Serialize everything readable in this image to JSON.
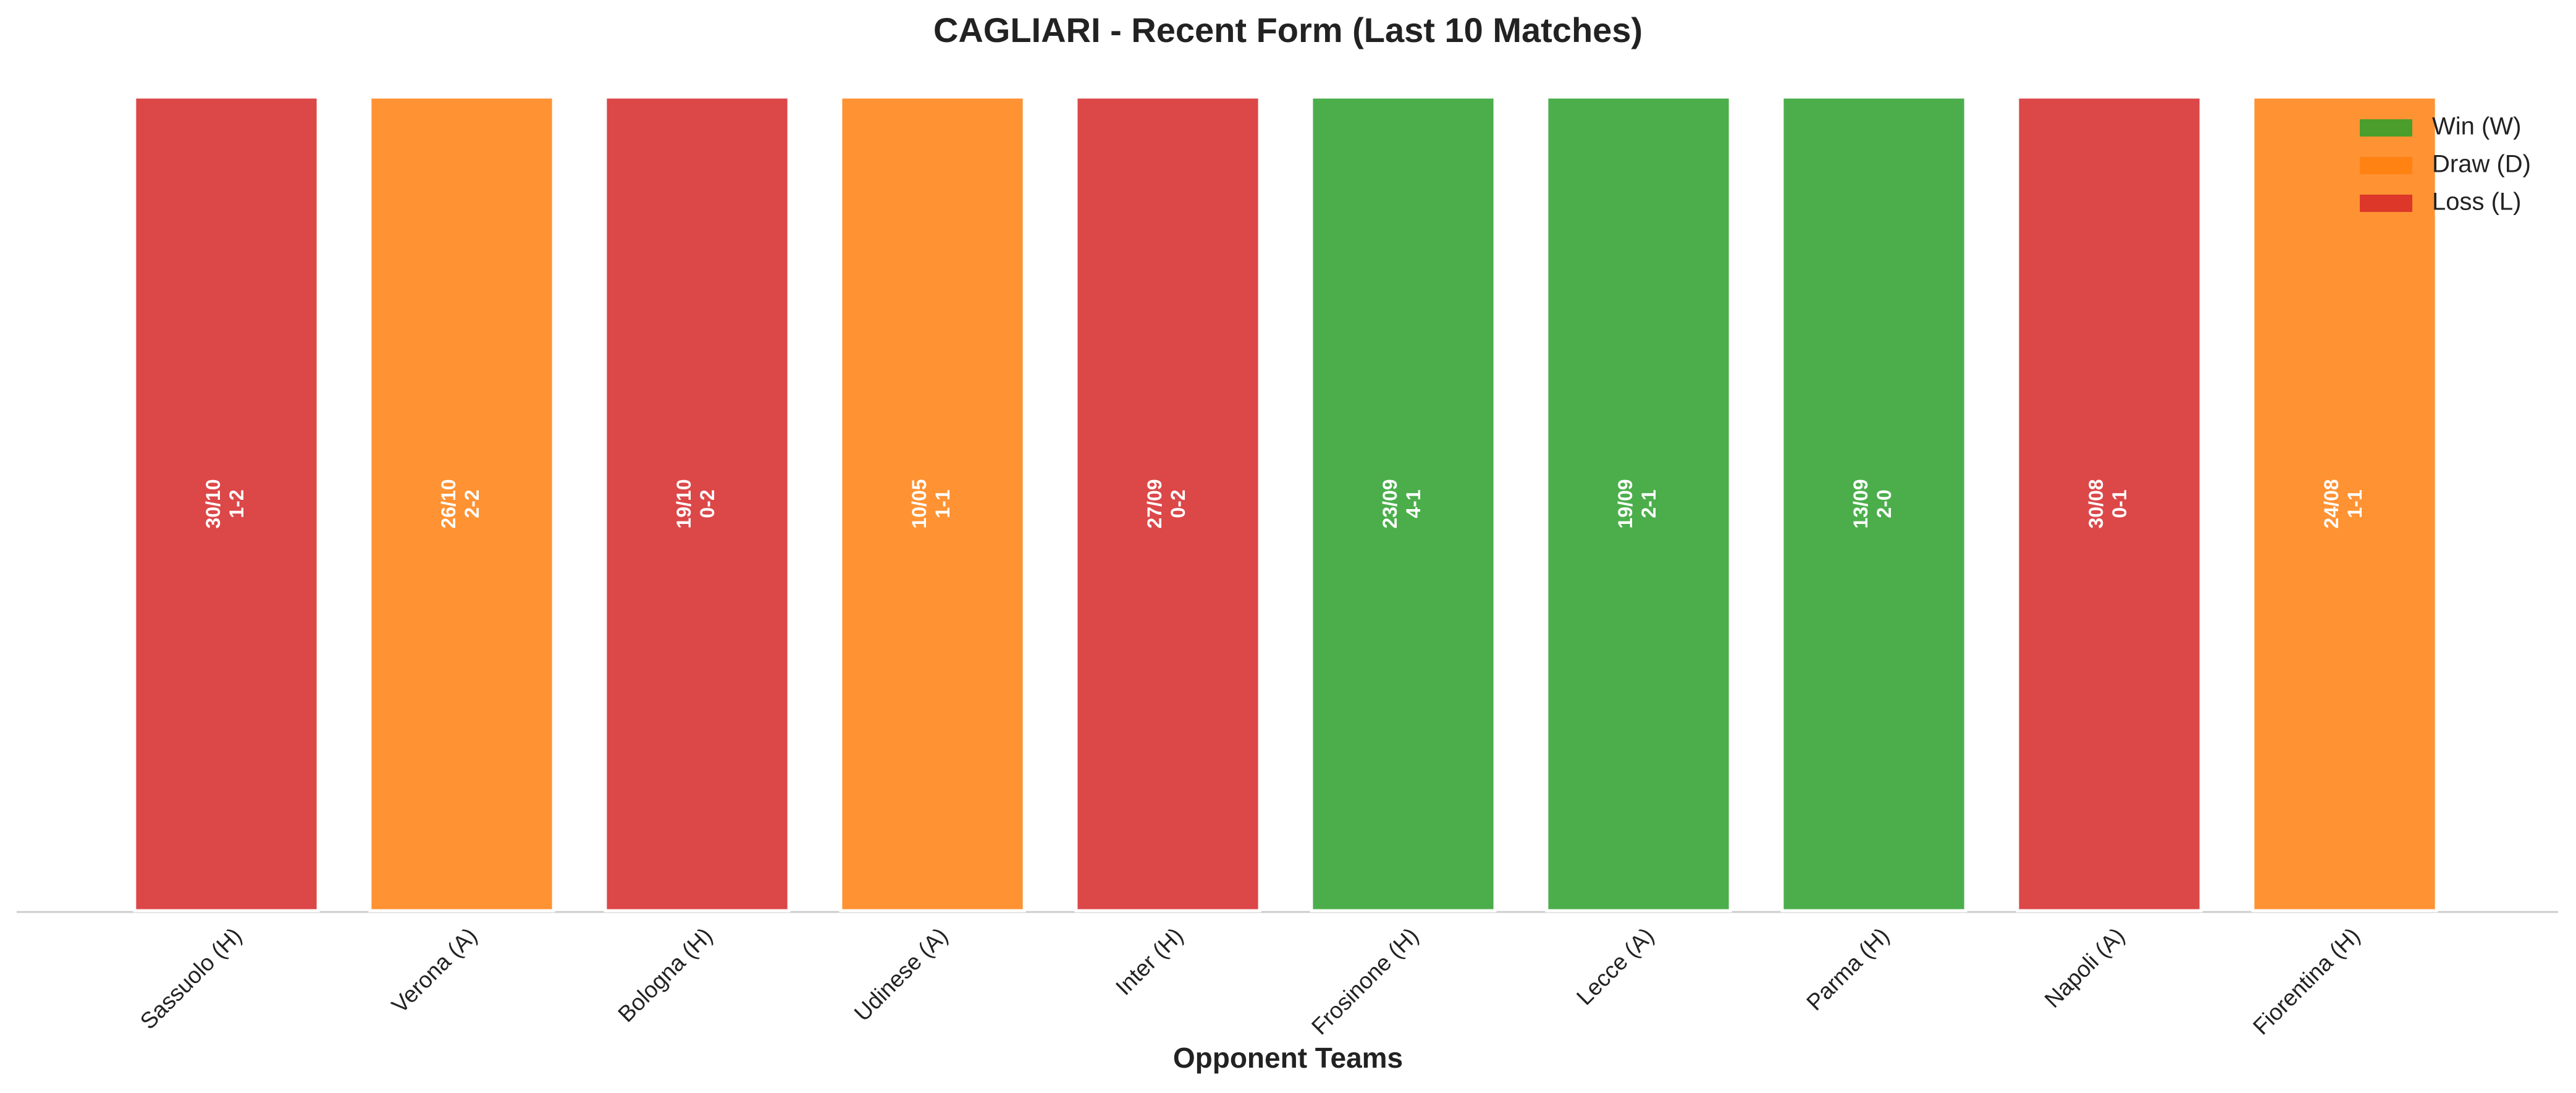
{
  "chart_data": {
    "type": "bar",
    "title": "CAGLIARI - Recent Form (Last 10 Matches)",
    "x_label": "Opponent Teams",
    "categories": [
      "Sassuolo (H)",
      "Verona (A)",
      "Bologna (H)",
      "Udinese (A)",
      "Inter (H)",
      "Frosinone (H)",
      "Lecce (A)",
      "Parma (H)",
      "Napoli (A)",
      "Fiorentina (H)"
    ],
    "values": [
      1,
      1,
      1,
      1,
      1,
      1,
      1,
      1,
      1,
      1
    ],
    "dates": [
      "30/10",
      "26/10",
      "19/10",
      "10/05",
      "27/09",
      "23/09",
      "19/09",
      "13/09",
      "30/08",
      "24/08"
    ],
    "scores": [
      "1-2",
      "2-2",
      "0-2",
      "1-1",
      "0-2",
      "4-1",
      "2-1",
      "2-0",
      "0-1",
      "1-1"
    ],
    "colors": [
      "#d62728",
      "#ff7f0e",
      "#d62728",
      "#ff7f0e",
      "#d62728",
      "#2ca02c",
      "#2ca02c",
      "#2ca02c",
      "#d62728",
      "#ff7f0e"
    ],
    "ylim": [
      0,
      1
    ],
    "legend": {
      "position": "upper right",
      "entries": [
        {
          "name": "Win (W)",
          "color": "#2ca02c"
        },
        {
          "name": "Draw (D)",
          "color": "#ff7f0e"
        },
        {
          "name": "Loss (L)",
          "color": "#d62728"
        }
      ]
    }
  }
}
